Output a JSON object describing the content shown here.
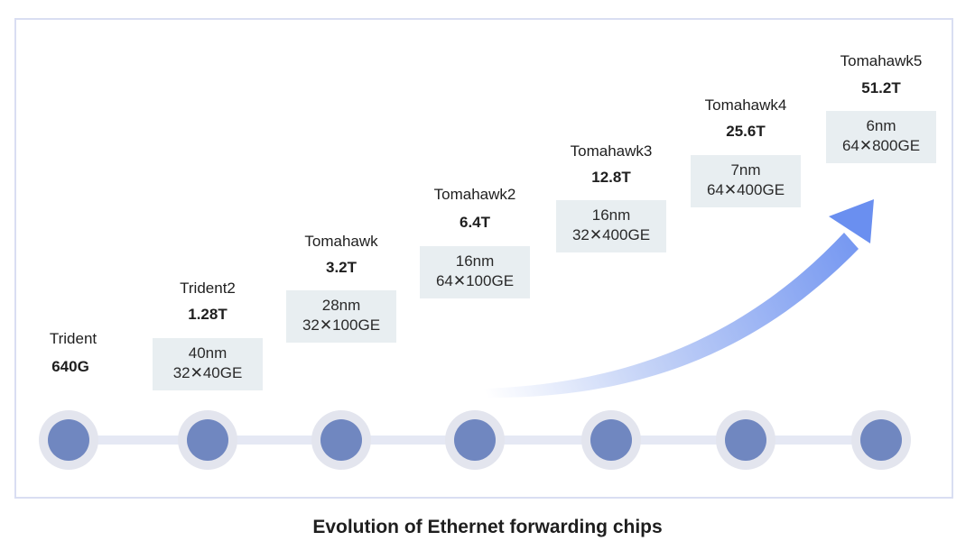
{
  "caption": "Evolution of Ethernet forwarding chips",
  "colors": {
    "node_fill": "#7087c0",
    "node_ring": "#e3e5ee",
    "track": "#e5e8f4",
    "spec_box": "#e8eef1",
    "arrow": "#6a8ff0",
    "frame_border": "#d9def2"
  },
  "chips": [
    {
      "name": "Trident",
      "capacity": "640G",
      "process": "",
      "ports": ""
    },
    {
      "name": "Trident2",
      "capacity": "1.28T",
      "process": "40nm",
      "ports": "32✕40GE"
    },
    {
      "name": "Tomahawk",
      "capacity": "3.2T",
      "process": "28nm",
      "ports": "32✕100GE"
    },
    {
      "name": "Tomahawk2",
      "capacity": "6.4T",
      "process": "16nm",
      "ports": "64✕100GE"
    },
    {
      "name": "Tomahawk3",
      "capacity": "12.8T",
      "process": "16nm",
      "ports": "32✕400GE"
    },
    {
      "name": "Tomahawk4",
      "capacity": "25.6T",
      "process": "7nm",
      "ports": "64✕400GE"
    },
    {
      "name": "Tomahawk5",
      "capacity": "51.2T",
      "process": "6nm",
      "ports": "64✕800GE"
    }
  ]
}
